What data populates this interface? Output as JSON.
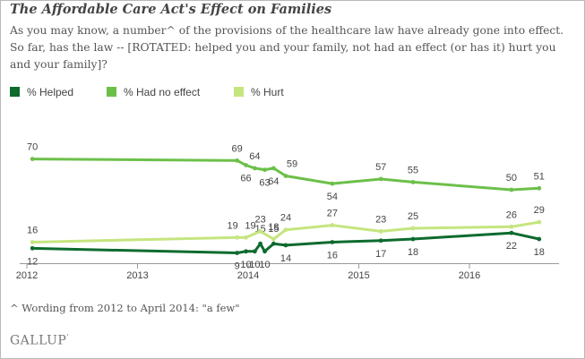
{
  "title": "The Affordable Care Act's Effect on Families",
  "question": "As you may know, a number^ of the provisions of the healthcare law have already gone into effect. So far, has the law -- [ROTATED: helped you and your family, not had an effect (or has it) hurt you and your family]?",
  "footnote": "^ Wording from 2012 to April 2014: \"a few\"",
  "brand": "GALLUP",
  "brand_mark": "'",
  "chart_data": {
    "type": "line",
    "title": "The Affordable Care Act's Effect on Families",
    "xlabel": "",
    "ylabel": "",
    "x_ticks": [
      "2012",
      "2013",
      "2014",
      "2015",
      "2016"
    ],
    "x_range": [
      2012.0,
      2016.7
    ],
    "ylim": [
      0,
      80
    ],
    "grid": false,
    "legend_position": "top-left",
    "series": [
      {
        "name": "% Helped",
        "color": "#0d6b2e",
        "points": [
          {
            "x": 2012.05,
            "y": 12
          },
          {
            "x": 2013.9,
            "y": 9
          },
          {
            "x": 2013.98,
            "y": 10
          },
          {
            "x": 2014.06,
            "y": 10
          },
          {
            "x": 2014.11,
            "y": 15
          },
          {
            "x": 2014.15,
            "y": 10
          },
          {
            "x": 2014.23,
            "y": 15
          },
          {
            "x": 2014.34,
            "y": 14
          },
          {
            "x": 2014.76,
            "y": 16
          },
          {
            "x": 2015.2,
            "y": 17
          },
          {
            "x": 2015.49,
            "y": 18
          },
          {
            "x": 2016.38,
            "y": 22
          },
          {
            "x": 2016.63,
            "y": 18
          }
        ]
      },
      {
        "name": "% Had no effect",
        "color": "#6cc04a",
        "points": [
          {
            "x": 2012.05,
            "y": 70
          },
          {
            "x": 2013.9,
            "y": 69
          },
          {
            "x": 2013.98,
            "y": 66
          },
          {
            "x": 2014.06,
            "y": 64
          },
          {
            "x": 2014.15,
            "y": 63
          },
          {
            "x": 2014.23,
            "y": 64
          },
          {
            "x": 2014.34,
            "y": 59
          },
          {
            "x": 2014.76,
            "y": 54
          },
          {
            "x": 2015.2,
            "y": 57
          },
          {
            "x": 2015.49,
            "y": 55
          },
          {
            "x": 2016.38,
            "y": 50
          },
          {
            "x": 2016.63,
            "y": 51
          }
        ]
      },
      {
        "name": "% Hurt",
        "color": "#c5e57f",
        "points": [
          {
            "x": 2012.05,
            "y": 16
          },
          {
            "x": 2013.9,
            "y": 19
          },
          {
            "x": 2013.98,
            "y": 19
          },
          {
            "x": 2014.11,
            "y": 23
          },
          {
            "x": 2014.23,
            "y": 18
          },
          {
            "x": 2014.34,
            "y": 24
          },
          {
            "x": 2014.76,
            "y": 27
          },
          {
            "x": 2015.2,
            "y": 23
          },
          {
            "x": 2015.49,
            "y": 25
          },
          {
            "x": 2016.38,
            "y": 26
          },
          {
            "x": 2016.63,
            "y": 29
          }
        ]
      }
    ]
  }
}
